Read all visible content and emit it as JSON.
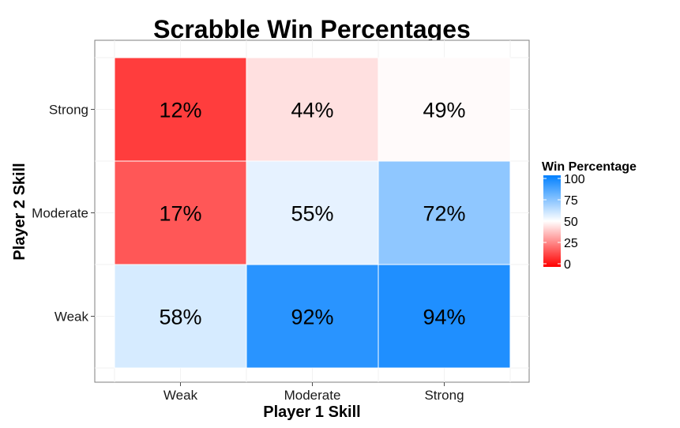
{
  "chart_data": {
    "type": "heatmap",
    "title": "Scrabble Win Percentages",
    "xlabel": "Player 1 Skill",
    "ylabel": "Player 2 Skill",
    "x_categories": [
      "Weak",
      "Moderate",
      "Strong"
    ],
    "y_categories": [
      "Weak",
      "Moderate",
      "Strong"
    ],
    "cells": [
      {
        "x": "Weak",
        "y": "Strong",
        "value": 12,
        "label": "12%"
      },
      {
        "x": "Moderate",
        "y": "Strong",
        "value": 44,
        "label": "44%"
      },
      {
        "x": "Strong",
        "y": "Strong",
        "value": 49,
        "label": "49%"
      },
      {
        "x": "Weak",
        "y": "Moderate",
        "value": 17,
        "label": "17%"
      },
      {
        "x": "Moderate",
        "y": "Moderate",
        "value": 55,
        "label": "55%"
      },
      {
        "x": "Strong",
        "y": "Moderate",
        "value": 72,
        "label": "72%"
      },
      {
        "x": "Weak",
        "y": "Weak",
        "value": 58,
        "label": "58%"
      },
      {
        "x": "Moderate",
        "y": "Weak",
        "value": 92,
        "label": "92%"
      },
      {
        "x": "Strong",
        "y": "Weak",
        "value": 94,
        "label": "94%"
      }
    ],
    "legend": {
      "title": "Win Percentage",
      "ticks": [
        0,
        25,
        50,
        75,
        100
      ],
      "tick_labels": [
        "0",
        "25",
        "50",
        "75",
        "100"
      ],
      "range": [
        0,
        100
      ],
      "placement": "right"
    },
    "colors": {
      "low": "#ff0000",
      "mid": "#ffffff",
      "high": "#0080ff",
      "midpoint": 50
    },
    "grid": true
  }
}
